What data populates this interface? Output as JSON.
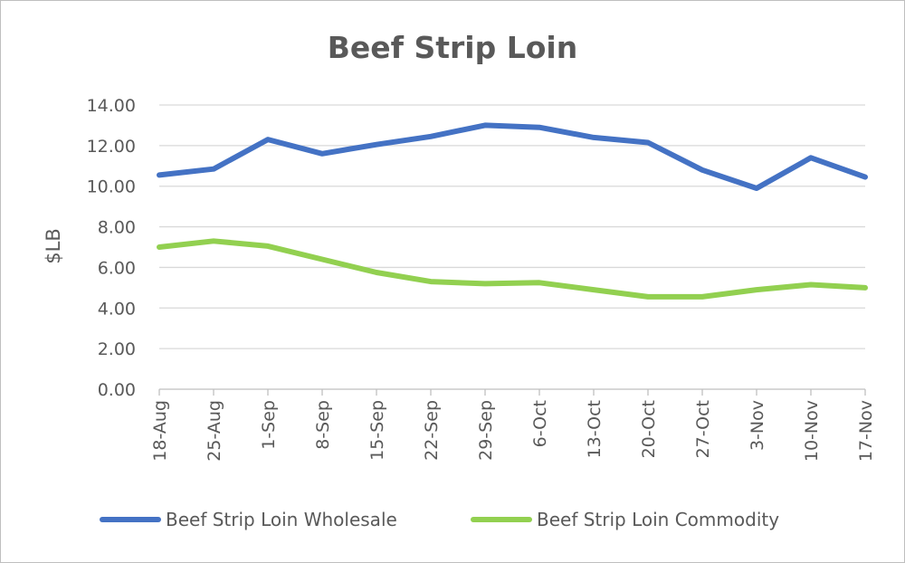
{
  "chart_data": {
    "type": "line",
    "title": "Beef Strip Loin",
    "xlabel": "",
    "ylabel": "$LB",
    "ylim": [
      0,
      14
    ],
    "ytick_step": 2,
    "grid": true,
    "legend_position": "bottom",
    "categories": [
      "18-Aug",
      "25-Aug",
      "1-Sep",
      "8-Sep",
      "15-Sep",
      "22-Sep",
      "29-Sep",
      "6-Oct",
      "13-Oct",
      "20-Oct",
      "27-Oct",
      "3-Nov",
      "10-Nov",
      "17-Nov"
    ],
    "series": [
      {
        "name": "Beef Strip Loin Wholesale",
        "color": "#4472c4",
        "values": [
          10.55,
          10.85,
          12.3,
          11.6,
          12.05,
          12.45,
          13.0,
          12.9,
          12.4,
          12.15,
          10.8,
          9.9,
          11.4,
          10.45
        ]
      },
      {
        "name": "Beef Strip Loin Commodity",
        "color": "#92d050",
        "values": [
          7.0,
          7.3,
          7.05,
          6.4,
          5.75,
          5.3,
          5.2,
          5.25,
          4.9,
          4.55,
          4.55,
          4.9,
          5.15,
          5.0
        ]
      }
    ]
  }
}
